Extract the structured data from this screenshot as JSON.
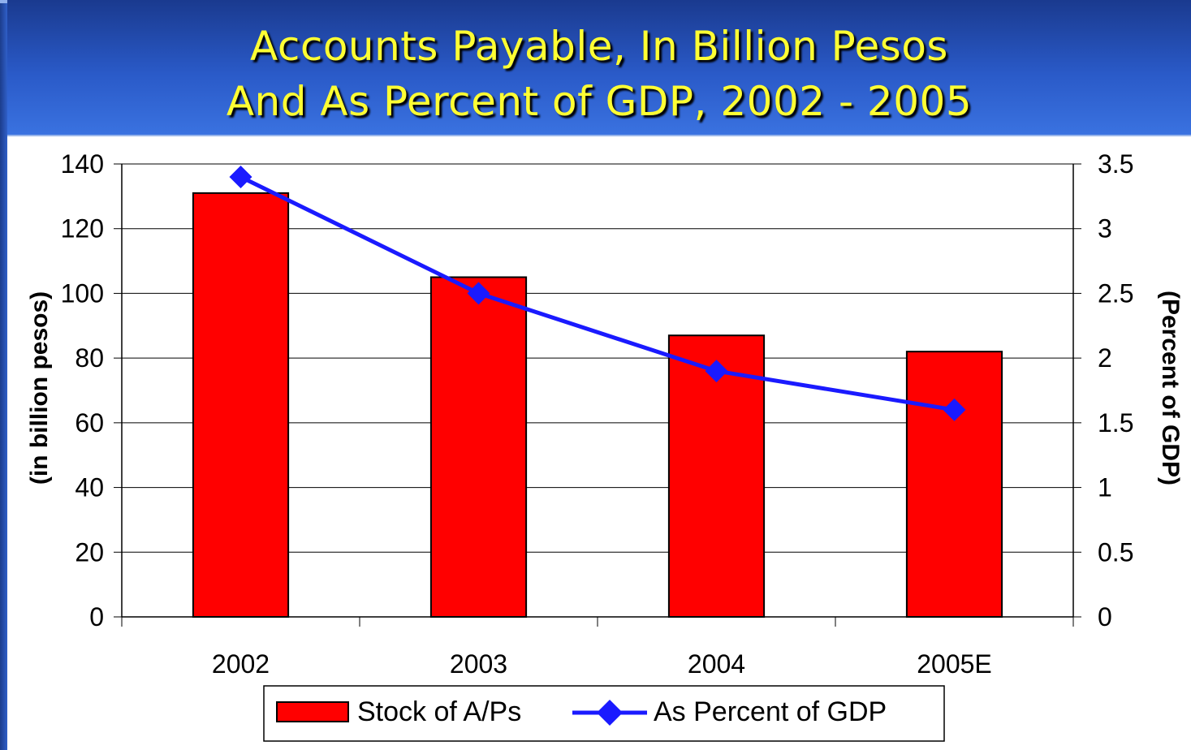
{
  "title": {
    "line1": "Accounts Payable, In Billion Pesos",
    "line2": "And As Percent of GDP, 2002 - 2005"
  },
  "colors": {
    "bar": "#ff0000",
    "line": "#1a1aff",
    "title_text": "#ffff33",
    "title_band": "#2a5ac8"
  },
  "chart_data": {
    "type": "bar",
    "categories": [
      "2002",
      "2003",
      "2004",
      "2005E"
    ],
    "series": [
      {
        "name": "Stock of A/Ps",
        "type": "bar",
        "axis": "left",
        "values": [
          131,
          105,
          87,
          82
        ]
      },
      {
        "name": "As Percent of GDP",
        "type": "line",
        "axis": "right",
        "marker": "diamond",
        "values": [
          3.4,
          2.5,
          1.9,
          1.6
        ]
      }
    ],
    "ylabel": "(in billion pesos)",
    "ylabel_right": "(Percent of GDP)",
    "ylim": [
      0,
      140
    ],
    "ylim_right": [
      0,
      3.5
    ],
    "yticks": [
      "0",
      "20",
      "40",
      "60",
      "80",
      "100",
      "120",
      "140"
    ],
    "yticks_right": [
      "0",
      "0.5",
      "1",
      "1.5",
      "2",
      "2.5",
      "3",
      "3.5"
    ],
    "grid": true,
    "legend": "bottom"
  }
}
